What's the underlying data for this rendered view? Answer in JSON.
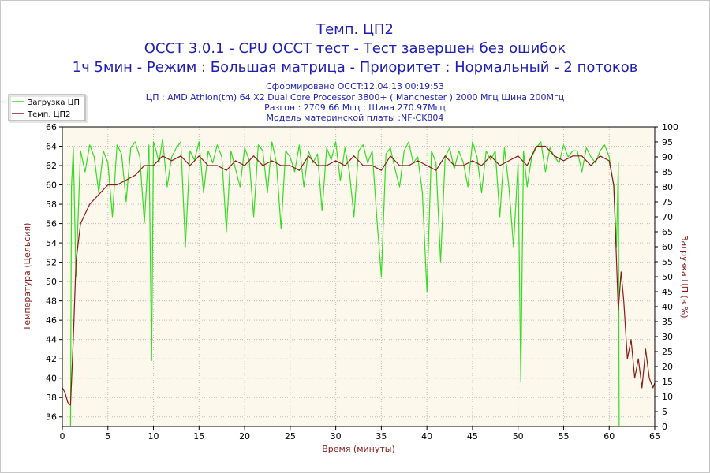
{
  "header": {
    "title": "Темп. ЦП2",
    "subtitle": "OCCT 3.0.1 - CPU OCCT тест - Тест завершен без ошибок",
    "mode_line": "1ч 5мин - Режим : Большая матрица - Приоритет : Нормальный - 2 потоков"
  },
  "info": {
    "generated": "Сформировано OCCT:12.04.13 00:19:53",
    "cpu": "ЦП : AMD Athlon(tm) 64 X2 Dual Core Processor 3800+ ( Manchester ) 2000 Мгц Шина 200Мгц",
    "overclock": "Разгон : 2709.66 Мгц ; Шина 270.97Мгц",
    "motherboard": "Модель материнской платы :NF-CK804"
  },
  "colors": {
    "plot_bg": "#fdf8ec",
    "load": "#33dd22",
    "temp": "#8b1a1a",
    "grid": "#bbbbbb",
    "title": "#1f1fb4"
  },
  "chart_data": {
    "type": "line",
    "title": "Темп. ЦП2",
    "xlabel": "Время (минуты)",
    "ylabel_left": "Температура (Цельсия)",
    "ylabel_right": "Загрузка ЦП (в %)",
    "xlim": [
      0,
      65
    ],
    "ylim_left": [
      35,
      66
    ],
    "ylim_right": [
      0,
      100
    ],
    "x_ticks": [
      0,
      5,
      10,
      15,
      20,
      25,
      30,
      35,
      40,
      45,
      50,
      55,
      60,
      65
    ],
    "y_ticks_left": [
      36,
      38,
      40,
      42,
      44,
      46,
      48,
      50,
      52,
      54,
      56,
      58,
      60,
      62,
      64,
      66
    ],
    "y_ticks_right": [
      0,
      5,
      10,
      15,
      20,
      25,
      30,
      35,
      40,
      45,
      50,
      55,
      60,
      65,
      70,
      75,
      80,
      85,
      90,
      95,
      100
    ],
    "grid": "dotted",
    "legend_position": "top-left",
    "series": [
      {
        "name": "Загрузка ЦП",
        "axis": "right",
        "color": "#33dd22",
        "x": [
          0.9,
          1.0,
          1.2,
          1.5,
          2,
          2.5,
          3,
          3.5,
          4,
          4.5,
          5,
          5.5,
          6,
          6.5,
          7,
          7.5,
          8,
          8.5,
          9,
          9.5,
          9.8,
          10,
          10.3,
          10.6,
          11,
          11.5,
          12,
          12.5,
          13,
          13.5,
          14,
          14.5,
          15,
          15.5,
          16,
          16.5,
          17,
          17.5,
          18,
          18.5,
          19,
          19.5,
          20,
          20.5,
          21,
          21.5,
          22,
          22.5,
          23,
          23.5,
          24,
          24.5,
          25,
          25.5,
          26,
          26.5,
          27,
          27.5,
          28,
          28.5,
          29,
          29.5,
          30,
          30.5,
          31,
          31.5,
          32,
          32.5,
          33,
          33.5,
          34,
          34.5,
          35,
          35.5,
          36,
          36.5,
          37,
          37.5,
          38,
          38.5,
          39,
          39.5,
          40,
          40.5,
          41,
          41.5,
          42,
          42.5,
          43,
          43.5,
          44,
          44.5,
          45,
          45.5,
          46,
          46.5,
          47,
          47.5,
          48,
          48.5,
          49,
          49.5,
          50,
          50.3,
          50.6,
          51,
          51.5,
          52,
          52.5,
          53,
          53.5,
          54,
          54.5,
          55,
          55.5,
          56,
          56.5,
          57,
          57.5,
          58,
          58.5,
          59,
          59.5,
          60,
          60.5,
          60.8,
          61.0,
          61.1
        ],
        "y": [
          0,
          80,
          93,
          50,
          92,
          85,
          94,
          90,
          78,
          92,
          88,
          70,
          94,
          91,
          75,
          93,
          95,
          90,
          68,
          94,
          22,
          95,
          92,
          88,
          96,
          80,
          90,
          93,
          95,
          60,
          92,
          89,
          95,
          78,
          92,
          88,
          94,
          90,
          65,
          92,
          86,
          80,
          93,
          89,
          70,
          94,
          92,
          78,
          95,
          88,
          66,
          92,
          90,
          85,
          94,
          80,
          92,
          88,
          91,
          72,
          93,
          89,
          95,
          82,
          93,
          85,
          70,
          92,
          94,
          88,
          92,
          70,
          50,
          91,
          93,
          86,
          80,
          92,
          95,
          88,
          90,
          78,
          45,
          92,
          88,
          55,
          90,
          93,
          86,
          92,
          88,
          80,
          95,
          90,
          78,
          92,
          89,
          92,
          70,
          93,
          80,
          60,
          88,
          15,
          92,
          80,
          90,
          93,
          95,
          85,
          93,
          90,
          88,
          94,
          90,
          92,
          92,
          85,
          93,
          90,
          88,
          92,
          94,
          90,
          80,
          60,
          88,
          0
        ]
      },
      {
        "name": "Темп. ЦП2",
        "axis": "left",
        "color": "#8b1a1a",
        "x": [
          0,
          0.3,
          0.6,
          0.9,
          1.2,
          1.5,
          2,
          2.5,
          3,
          4,
          5,
          6,
          7,
          8,
          9,
          10,
          11,
          12,
          13,
          14,
          15,
          16,
          17,
          18,
          19,
          20,
          21,
          22,
          23,
          24,
          25,
          26,
          27,
          28,
          29,
          30,
          31,
          32,
          33,
          34,
          35,
          36,
          37,
          38,
          39,
          40,
          41,
          42,
          43,
          44,
          45,
          46,
          47,
          48,
          49,
          50,
          51,
          52,
          53,
          54,
          55,
          56,
          57,
          58,
          59,
          60,
          60.5,
          61.0,
          61.3,
          61.6,
          62.0,
          62.4,
          62.8,
          63.2,
          63.6,
          64.0,
          64.4,
          64.8,
          65.0
        ],
        "y": [
          39,
          38.5,
          37.5,
          37.2,
          44,
          52,
          56,
          57,
          58,
          59,
          60,
          60,
          60.5,
          61,
          62,
          62,
          63,
          62.5,
          63,
          62,
          63,
          62,
          62,
          61.5,
          62.5,
          62,
          63,
          62,
          62.5,
          62,
          62,
          61.5,
          63,
          62,
          62,
          62.5,
          62,
          63,
          62,
          62,
          61.5,
          63,
          62,
          62,
          62.5,
          62,
          61.5,
          63,
          62,
          62,
          62.5,
          62,
          63,
          62,
          62.5,
          63,
          62,
          64,
          64,
          63,
          62.5,
          63,
          63,
          62,
          63,
          62.5,
          60,
          47,
          51,
          48,
          42,
          44,
          40,
          42,
          39,
          43,
          40,
          39,
          39.5
        ]
      }
    ]
  }
}
